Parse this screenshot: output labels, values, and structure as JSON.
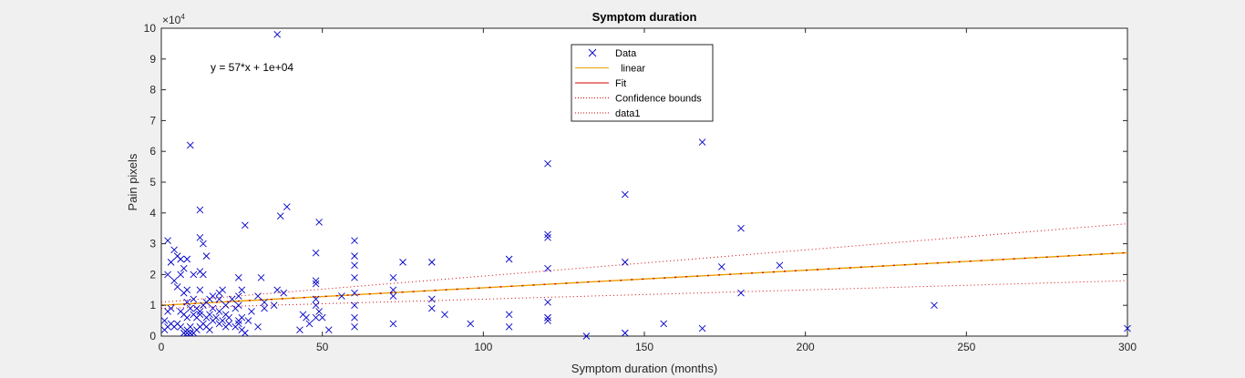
{
  "chart_data": {
    "type": "scatter",
    "title": "Symptom duration",
    "xlabel": "Symptom duration (months)",
    "ylabel": "Pain pixels",
    "xlim": [
      0,
      300
    ],
    "ylim": [
      0,
      100000
    ],
    "y_exponent_label": "×10",
    "y_exponent_power": "4",
    "x_ticks": [
      0,
      50,
      100,
      150,
      200,
      250,
      300
    ],
    "x_tick_labels": [
      "0",
      "50",
      "100",
      "150",
      "200",
      "250",
      "300"
    ],
    "y_ticks": [
      0,
      10000,
      20000,
      30000,
      40000,
      50000,
      60000,
      70000,
      80000,
      90000,
      100000
    ],
    "y_tick_labels": [
      "0",
      "1",
      "2",
      "3",
      "4",
      "5",
      "6",
      "7",
      "8",
      "9",
      "10"
    ],
    "annotation": "y = 57*x + 1e+04",
    "legend_position": "top-center",
    "legend": [
      {
        "label": "Data",
        "style": "marker",
        "color": "#0000c8"
      },
      {
        "label": "  linear",
        "style": "solid",
        "color": "#e8a200"
      },
      {
        "label": "Fit",
        "style": "solid",
        "color": "#d40000"
      },
      {
        "label": "Confidence bounds",
        "style": "dotted",
        "color": "#d40000"
      },
      {
        "label": "data1",
        "style": "dotted",
        "color": "#d40000"
      }
    ],
    "colors": {
      "data": "#0000c8",
      "linear": "#e8a200",
      "fit": "#d40000",
      "bounds": "#d40000"
    },
    "fit": {
      "slope": 57,
      "intercept": 10000
    },
    "confidence_lower": {
      "x": [
        0,
        300
      ],
      "y": [
        9000,
        18000
      ]
    },
    "confidence_upper": {
      "x": [
        0,
        300
      ],
      "y": [
        11000,
        36500
      ]
    },
    "series": [
      {
        "name": "Data",
        "x": [
          1,
          1,
          2,
          2,
          2,
          3,
          3,
          3,
          4,
          4,
          4,
          5,
          5,
          5,
          6,
          6,
          6,
          6,
          7,
          7,
          7,
          7,
          8,
          8,
          8,
          8,
          8,
          9,
          9,
          9,
          9,
          10,
          10,
          10,
          10,
          11,
          11,
          11,
          12,
          12,
          12,
          12,
          12,
          12,
          13,
          13,
          13,
          13,
          14,
          14,
          14,
          15,
          15,
          15,
          16,
          16,
          16,
          17,
          18,
          18,
          18,
          18,
          19,
          19,
          20,
          20,
          20,
          21,
          21,
          22,
          23,
          23,
          24,
          24,
          24,
          24,
          24,
          25,
          25,
          25,
          26,
          26,
          27,
          28,
          30,
          30,
          31,
          32,
          32,
          35,
          36,
          36,
          37,
          39,
          43,
          44,
          45,
          46,
          48,
          48,
          48,
          48,
          48,
          48,
          49,
          49,
          50,
          52,
          56,
          60,
          60,
          60,
          60,
          60,
          60,
          60,
          60,
          72,
          72,
          72,
          72,
          75,
          84,
          84,
          84,
          88,
          96,
          108,
          108,
          108,
          120,
          120,
          120,
          120,
          120,
          120,
          120,
          120,
          132,
          144,
          144,
          144,
          156,
          168,
          168,
          174,
          180,
          180,
          192,
          240,
          300,
          12,
          14,
          38,
          8,
          2
        ],
        "y": [
          2000,
          5000,
          8000,
          20000,
          31000,
          4000,
          9000,
          24000,
          3000,
          18000,
          28000,
          4000,
          16000,
          26000,
          3000,
          8000,
          20000,
          25000,
          1000,
          7000,
          14000,
          22000,
          2000,
          6000,
          11000,
          15000,
          25000,
          1000,
          3000,
          9000,
          62000,
          1000,
          7000,
          12000,
          20000,
          2000,
          6000,
          9000,
          3000,
          8000,
          15000,
          21000,
          32000,
          41000,
          4000,
          10000,
          20000,
          30000,
          3000,
          6000,
          26000,
          2000,
          7000,
          12000,
          5000,
          9000,
          13000,
          6000,
          4000,
          8000,
          12000,
          14000,
          5000,
          15000,
          3000,
          10000,
          7000,
          6000,
          4000,
          12000,
          3000,
          9000,
          4000,
          13000,
          19000,
          10000,
          5000,
          2000,
          6000,
          15000,
          1000,
          36000,
          5000,
          8000,
          3000,
          13000,
          19000,
          11000,
          9000,
          10000,
          98000,
          15000,
          39000,
          42000,
          2000,
          7000,
          6000,
          4000,
          17000,
          18000,
          10000,
          12000,
          6000,
          27000,
          37000,
          8000,
          6000,
          2000,
          13000,
          3000,
          6000,
          10000,
          14000,
          19000,
          23000,
          26000,
          31000,
          4000,
          13000,
          15000,
          19000,
          24000,
          12000,
          9000,
          24000,
          7000,
          4000,
          3000,
          7000,
          25000,
          5000,
          6000,
          11000,
          22000,
          32000,
          33000,
          56000,
          6000,
          0,
          1000,
          24000,
          46000,
          4000,
          2500,
          63000,
          22500,
          14000,
          35000,
          23000,
          10000,
          2500,
          7000,
          11000,
          14000,
          1000,
          3000
        ]
      }
    ]
  }
}
